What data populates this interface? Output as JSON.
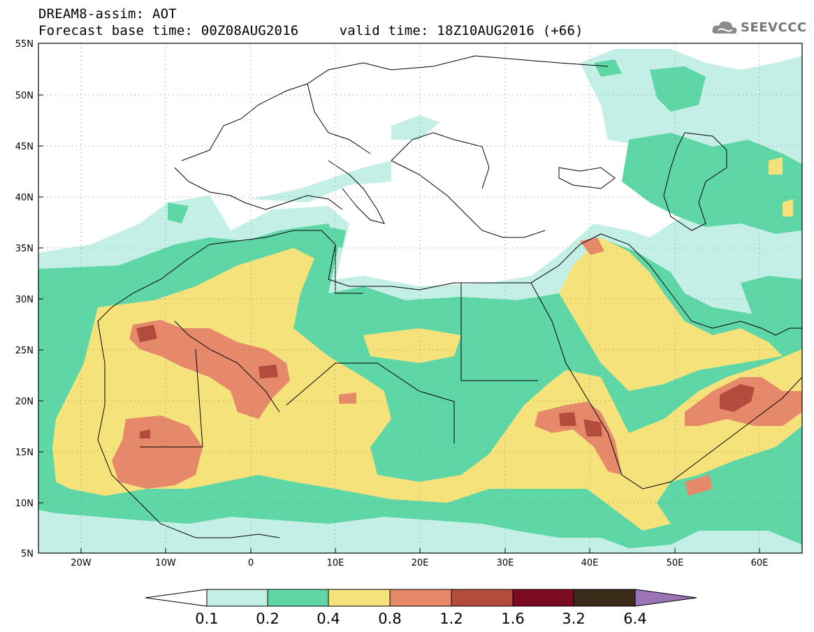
{
  "header": {
    "line1": "DREAM8-assim: AOT",
    "line2": "Forecast base time: 00Z08AUG2016     valid time: 18Z10AUG2016 (+66)"
  },
  "logo": {
    "text": "SEEVCCC",
    "icon": "cloud-icon"
  },
  "map": {
    "lat_labels": [
      "55N",
      "50N",
      "45N",
      "40N",
      "35N",
      "30N",
      "25N",
      "20N",
      "15N",
      "10N",
      "5N"
    ],
    "lon_labels": [
      "20W",
      "10W",
      "0",
      "10E",
      "20E",
      "30E",
      "40E",
      "50E",
      "60E"
    ],
    "colors": {
      "c01": "#c4efe6",
      "c02": "#5fd6a6",
      "c04": "#f5e27b",
      "c08": "#e6896a",
      "c12": "#b44c3e",
      "c16": "#7c0a22",
      "c32": "#3a2a18",
      "c64": "#9d73b8"
    }
  },
  "colorbar": {
    "labels": [
      "0.1",
      "0.2",
      "0.4",
      "0.8",
      "1.2",
      "1.6",
      "3.2",
      "6.4"
    ],
    "colors": [
      "#ffffff",
      "#c4efe6",
      "#5fd6a6",
      "#f5e27b",
      "#e6896a",
      "#b44c3e",
      "#7c0a22",
      "#3a2a18",
      "#9d73b8"
    ]
  }
}
